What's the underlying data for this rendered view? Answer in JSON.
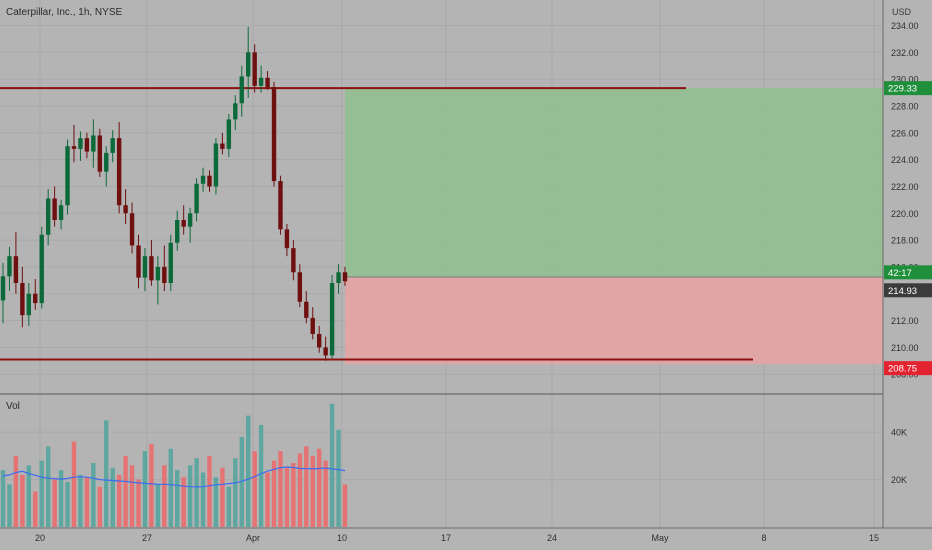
{
  "chart_data": {
    "type": "candlestick",
    "title": "Caterpillar, Inc., 1h, NYSE",
    "currency": "USD",
    "price_axis": {
      "ticks": [
        208,
        210,
        212,
        214,
        216,
        218,
        220,
        222,
        224,
        226,
        228,
        230,
        232,
        234
      ],
      "tick_labels": [
        "208.00",
        "210.00",
        "212.00",
        "214.00",
        "216.00",
        "218.00",
        "220.00",
        "222.00",
        "224.00",
        "226.00",
        "228.00",
        "230.00",
        "232.00",
        "234.00"
      ],
      "range": [
        206.6,
        235.9
      ]
    },
    "time_axis": {
      "labels": [
        "20",
        "27",
        "Apr",
        "10",
        "17",
        "24",
        "May",
        "8",
        "15"
      ]
    },
    "price_markers": {
      "take_profit": {
        "label": "229.33",
        "value": 229.33,
        "color": "#1f8f3b"
      },
      "countdown": {
        "label": "42:17",
        "value": 215.3,
        "color": "#1f8f3b"
      },
      "last_price": {
        "label": "214.93",
        "value": 214.93,
        "color": "#3b3b3b"
      },
      "stop_loss": {
        "label": "208.75",
        "value": 208.75,
        "color": "#e3232f"
      }
    },
    "horizontal_lines": [
      {
        "name": "resistance",
        "value": 229.33,
        "color": "#8b1010"
      },
      {
        "name": "support",
        "value": 209.1,
        "color": "#8b1010"
      }
    ],
    "position": {
      "entry": 215.25,
      "target": 229.33,
      "stop": 208.75,
      "profit_color": "#8fbf8f",
      "loss_color": "#e8a3a3"
    },
    "candles": [
      [
        213.5,
        216.3,
        211.8,
        215.3
      ],
      [
        215.3,
        217.5,
        214.2,
        216.8
      ],
      [
        216.8,
        218.6,
        214.0,
        214.8
      ],
      [
        214.8,
        216.0,
        211.5,
        212.4
      ],
      [
        212.4,
        214.8,
        211.6,
        214.0
      ],
      [
        214.0,
        215.1,
        212.8,
        213.3
      ],
      [
        213.3,
        219.0,
        212.9,
        218.4
      ],
      [
        218.4,
        221.8,
        217.6,
        221.1
      ],
      [
        221.1,
        222.0,
        219.0,
        219.5
      ],
      [
        219.5,
        221.0,
        218.8,
        220.6
      ],
      [
        220.6,
        225.5,
        219.9,
        225.0
      ],
      [
        225.0,
        226.6,
        223.8,
        224.8
      ],
      [
        224.8,
        226.1,
        223.9,
        225.6
      ],
      [
        225.6,
        226.0,
        224.1,
        224.6
      ],
      [
        224.6,
        227.0,
        223.4,
        225.8
      ],
      [
        225.8,
        226.3,
        222.7,
        223.1
      ],
      [
        223.1,
        225.0,
        222.0,
        224.5
      ],
      [
        224.5,
        226.2,
        223.8,
        225.6
      ],
      [
        225.6,
        226.8,
        220.0,
        220.6
      ],
      [
        220.6,
        221.8,
        219.2,
        220.0
      ],
      [
        220.0,
        220.8,
        217.0,
        217.6
      ],
      [
        217.6,
        218.4,
        214.4,
        215.2
      ],
      [
        215.2,
        217.4,
        214.2,
        216.8
      ],
      [
        216.8,
        218.0,
        214.6,
        215.0
      ],
      [
        215.0,
        216.8,
        213.2,
        216.0
      ],
      [
        216.0,
        217.6,
        214.2,
        214.8
      ],
      [
        214.8,
        218.4,
        214.2,
        217.8
      ],
      [
        217.8,
        220.2,
        217.2,
        219.5
      ],
      [
        219.5,
        220.6,
        218.4,
        219.0
      ],
      [
        219.0,
        220.4,
        217.8,
        220.0
      ],
      [
        220.0,
        222.6,
        219.4,
        222.2
      ],
      [
        222.2,
        223.4,
        221.6,
        222.8
      ],
      [
        222.8,
        223.2,
        221.6,
        222.0
      ],
      [
        222.0,
        225.6,
        221.4,
        225.2
      ],
      [
        225.2,
        226.0,
        224.4,
        224.8
      ],
      [
        224.8,
        227.4,
        224.2,
        227.0
      ],
      [
        227.0,
        228.8,
        226.2,
        228.2
      ],
      [
        228.2,
        231.0,
        227.2,
        230.2
      ],
      [
        230.2,
        233.9,
        228.6,
        232.0
      ],
      [
        232.0,
        232.6,
        229.0,
        229.5
      ],
      [
        229.5,
        231.0,
        229.0,
        230.1
      ],
      [
        230.1,
        230.6,
        229.2,
        229.4
      ],
      [
        229.4,
        229.8,
        222.0,
        222.4
      ],
      [
        222.4,
        222.8,
        218.4,
        218.8
      ],
      [
        218.8,
        219.2,
        216.8,
        217.4
      ],
      [
        217.4,
        218.0,
        215.0,
        215.6
      ],
      [
        215.6,
        216.2,
        213.0,
        213.4
      ],
      [
        213.4,
        214.2,
        211.8,
        212.2
      ],
      [
        212.2,
        213.0,
        210.6,
        211.0
      ],
      [
        211.0,
        211.6,
        209.6,
        210.0
      ],
      [
        210.0,
        210.8,
        209.0,
        209.4
      ],
      [
        209.4,
        215.4,
        209.2,
        214.8
      ],
      [
        214.8,
        216.2,
        214.0,
        215.6
      ],
      [
        215.6,
        216.0,
        214.6,
        214.93
      ]
    ],
    "volume_axis": {
      "ticks": [
        20000,
        40000
      ],
      "tick_labels": [
        "20K",
        "40K"
      ],
      "range": [
        0,
        54000
      ]
    },
    "volume_label": "Vol",
    "volumes": [
      24000,
      18000,
      30000,
      22000,
      26000,
      15000,
      28000,
      34000,
      20000,
      24000,
      19000,
      36000,
      22000,
      21000,
      27000,
      17000,
      45000,
      25000,
      22000,
      30000,
      26000,
      20000,
      32000,
      35000,
      18000,
      26000,
      33000,
      24000,
      21000,
      26000,
      29000,
      23000,
      30000,
      21000,
      25000,
      17000,
      29000,
      38000,
      47000,
      32000,
      43000,
      23000,
      28000,
      32000,
      25000,
      27000,
      31000,
      34000,
      30000,
      33000,
      28000,
      52000,
      41000,
      18000
    ],
    "volume_ma": [
      21500,
      22000,
      23000,
      23500,
      22500,
      21800,
      21000,
      20600,
      20400,
      20200,
      20500,
      21000,
      21200,
      21000,
      20600,
      20000,
      19800,
      19600,
      19400,
      19200,
      18900,
      18600,
      18400,
      18200,
      18000,
      18000,
      17900,
      17600,
      17200,
      17000,
      16900,
      17000,
      17400,
      17800,
      18000,
      18300,
      18600,
      19300,
      20200,
      21200,
      22500,
      23600,
      24300,
      25000,
      25300,
      25100,
      24700,
      24600,
      24500,
      24700,
      24900,
      24500,
      24200,
      23800
    ],
    "volume_colors": {
      "up": "#5ea6a0",
      "down": "#e57373",
      "ma": "#3b6cf2"
    },
    "candle_colors": {
      "up": "#0c6a3a",
      "down": "#6e1010"
    }
  }
}
